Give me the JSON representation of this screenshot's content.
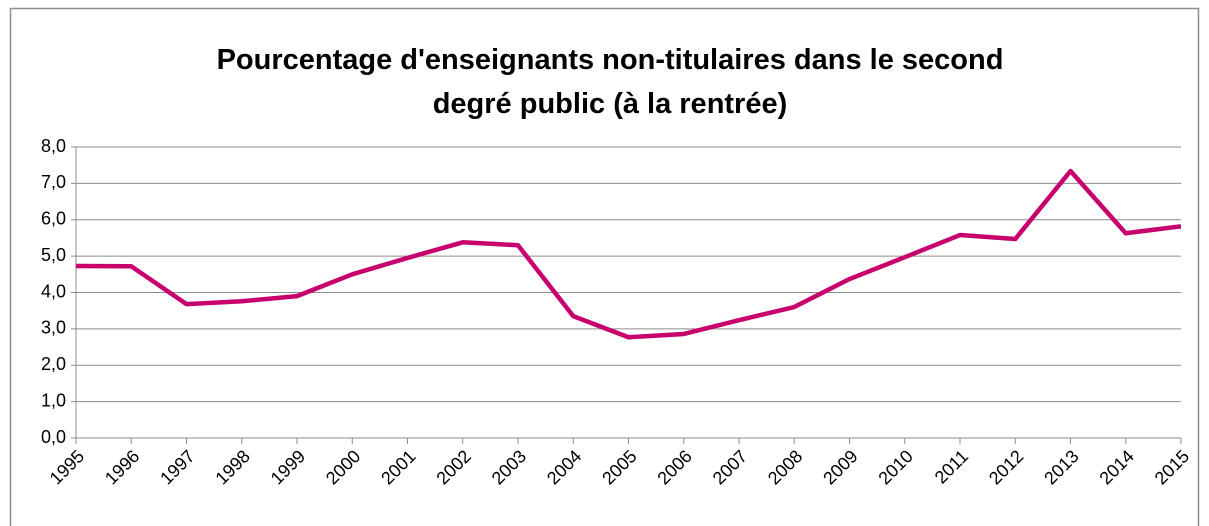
{
  "chart_data": {
    "type": "line",
    "title": "Pourcentage d'enseignants non-titulaires dans le second degré public (à la rentrée)",
    "categories": [
      "1995",
      "1996",
      "1997",
      "1998",
      "1999",
      "2000",
      "2001",
      "2002",
      "2003",
      "2004",
      "2005",
      "2006",
      "2007",
      "2008",
      "2009",
      "2010",
      "2011",
      "2012",
      "2013",
      "2014",
      "2015"
    ],
    "series": [
      {
        "color": "#c8006e",
        "values": [
          4.73,
          4.72,
          3.68,
          3.76,
          3.9,
          4.5,
          4.95,
          5.38,
          5.3,
          3.35,
          2.77,
          2.86,
          3.24,
          3.6,
          4.37,
          4.97,
          5.58,
          5.47,
          7.34,
          5.63,
          5.82
        ]
      }
    ],
    "ylim": [
      0,
      8
    ],
    "yticks": [
      {
        "value": 0,
        "label": "0,0"
      },
      {
        "value": 1,
        "label": "1,0"
      },
      {
        "value": 2,
        "label": "2,0"
      },
      {
        "value": 3,
        "label": "3,0"
      },
      {
        "value": 4,
        "label": "4,0"
      },
      {
        "value": 5,
        "label": "5,0"
      },
      {
        "value": 6,
        "label": "6,0"
      },
      {
        "value": 7,
        "label": "7,0"
      },
      {
        "value": 8,
        "label": "8,0"
      }
    ],
    "grid": true
  }
}
